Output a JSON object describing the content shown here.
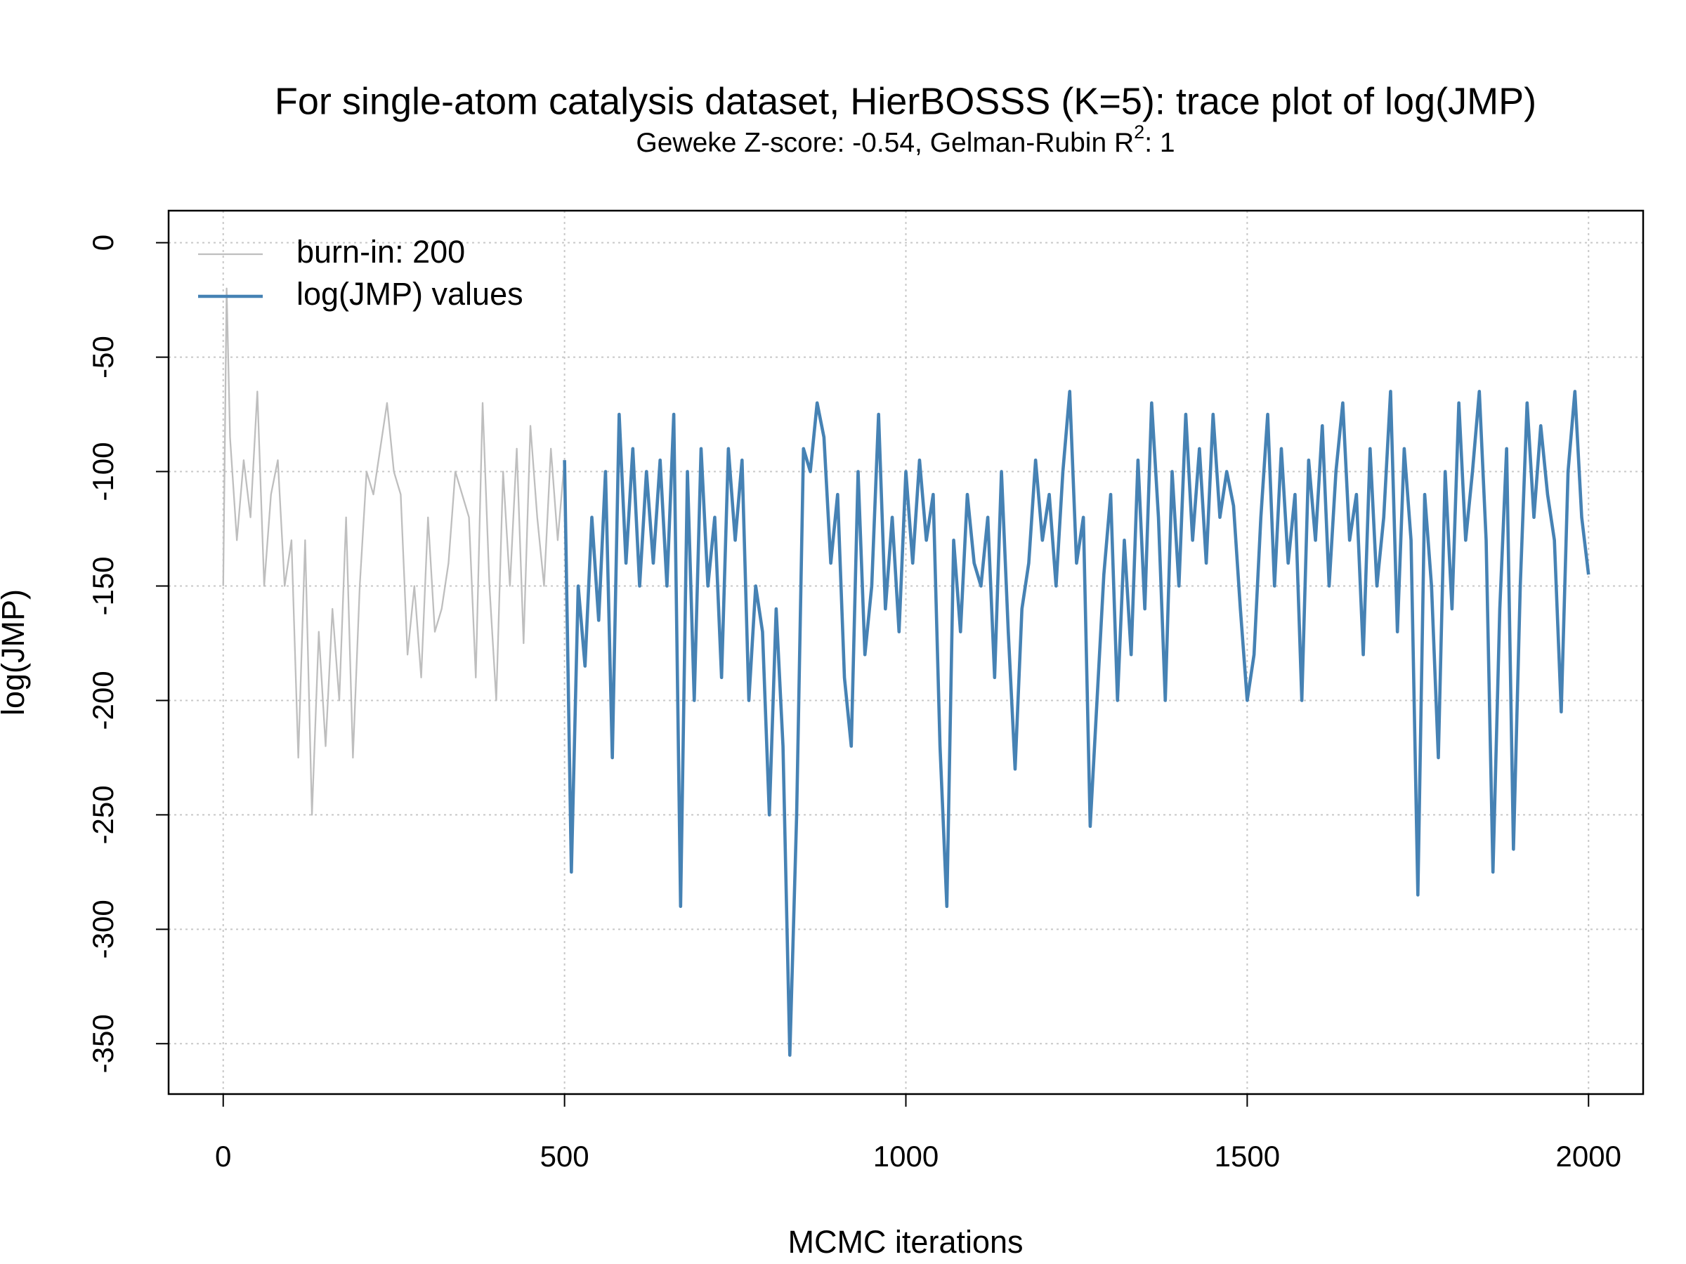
{
  "chart_data": {
    "type": "line",
    "title": "For single-atom catalysis dataset, HierBOSSS (K=5): trace plot of log(JMP)",
    "subtitle": [
      "Geweke Z-score: -0.54,  Gelman-Rubin R",
      "2",
      ": 1"
    ],
    "x_label": "MCMC iterations",
    "y_label": "log(JMP)",
    "xlim": [
      -80,
      2080
    ],
    "ylim": [
      -372,
      14
    ],
    "xticks": [
      0,
      500,
      1000,
      1500,
      2000
    ],
    "yticks": [
      0,
      -50,
      -100,
      -150,
      -200,
      -250,
      -300,
      -350
    ],
    "grid": true,
    "legend": "top-left",
    "series": [
      {
        "name": "burn-in: 200",
        "color": "#bebebe",
        "width": 1,
        "x": [
          0,
          5,
          10,
          20,
          30,
          40,
          50,
          60,
          70,
          80,
          90,
          100,
          110,
          120,
          130,
          140,
          150,
          160,
          170,
          180,
          190,
          200,
          210,
          220,
          230,
          240,
          250,
          260,
          270,
          280,
          290,
          300,
          310,
          320,
          330,
          340,
          350,
          360,
          370,
          380,
          390,
          400,
          410,
          420,
          430,
          440,
          450,
          460,
          470,
          480,
          490,
          500
        ],
        "values": [
          -150,
          -20,
          -85,
          -130,
          -95,
          -120,
          -65,
          -150,
          -110,
          -95,
          -150,
          -130,
          -225,
          -130,
          -250,
          -170,
          -220,
          -160,
          -200,
          -120,
          -225,
          -150,
          -100,
          -110,
          -90,
          -70,
          -100,
          -110,
          -180,
          -150,
          -190,
          -120,
          -170,
          -160,
          -140,
          -100,
          -110,
          -120,
          -190,
          -70,
          -150,
          -200,
          -100,
          -150,
          -90,
          -175,
          -80,
          -120,
          -150,
          -90,
          -130,
          -95
        ]
      },
      {
        "name": "log(JMP) values",
        "color": "#4682b4",
        "width": 2,
        "x": [
          500,
          510,
          520,
          530,
          540,
          550,
          560,
          570,
          580,
          590,
          600,
          610,
          620,
          630,
          640,
          650,
          660,
          670,
          680,
          690,
          700,
          710,
          720,
          730,
          740,
          750,
          760,
          770,
          780,
          790,
          800,
          810,
          820,
          830,
          840,
          850,
          860,
          870,
          880,
          890,
          900,
          910,
          920,
          930,
          940,
          950,
          960,
          970,
          980,
          990,
          1000,
          1010,
          1020,
          1030,
          1040,
          1050,
          1060,
          1070,
          1080,
          1090,
          1100,
          1110,
          1120,
          1130,
          1140,
          1150,
          1160,
          1170,
          1180,
          1190,
          1200,
          1210,
          1220,
          1230,
          1240,
          1250,
          1260,
          1270,
          1280,
          1290,
          1300,
          1310,
          1320,
          1330,
          1340,
          1350,
          1360,
          1370,
          1380,
          1390,
          1400,
          1410,
          1420,
          1430,
          1440,
          1450,
          1460,
          1470,
          1480,
          1490,
          1500,
          1510,
          1520,
          1530,
          1540,
          1550,
          1560,
          1570,
          1580,
          1590,
          1600,
          1610,
          1620,
          1630,
          1640,
          1650,
          1660,
          1670,
          1680,
          1690,
          1700,
          1710,
          1720,
          1730,
          1740,
          1750,
          1760,
          1770,
          1780,
          1790,
          1800,
          1810,
          1820,
          1830,
          1840,
          1850,
          1860,
          1870,
          1880,
          1890,
          1900,
          1910,
          1920,
          1930,
          1940,
          1950,
          1960,
          1970,
          1980,
          1990,
          2000
        ],
        "values": [
          -95,
          -275,
          -150,
          -185,
          -120,
          -165,
          -100,
          -225,
          -75,
          -140,
          -90,
          -150,
          -100,
          -140,
          -95,
          -150,
          -75,
          -290,
          -100,
          -200,
          -90,
          -150,
          -120,
          -190,
          -90,
          -130,
          -95,
          -200,
          -150,
          -170,
          -250,
          -160,
          -220,
          -355,
          -250,
          -90,
          -100,
          -70,
          -85,
          -140,
          -110,
          -190,
          -220,
          -100,
          -180,
          -150,
          -75,
          -160,
          -120,
          -170,
          -100,
          -140,
          -95,
          -130,
          -110,
          -220,
          -290,
          -130,
          -170,
          -110,
          -140,
          -150,
          -120,
          -190,
          -100,
          -170,
          -230,
          -160,
          -140,
          -95,
          -130,
          -110,
          -150,
          -100,
          -65,
          -140,
          -120,
          -255,
          -200,
          -145,
          -110,
          -200,
          -130,
          -180,
          -95,
          -160,
          -70,
          -120,
          -200,
          -100,
          -150,
          -75,
          -130,
          -90,
          -140,
          -75,
          -120,
          -100,
          -115,
          -160,
          -200,
          -180,
          -120,
          -75,
          -150,
          -90,
          -140,
          -110,
          -200,
          -95,
          -130,
          -80,
          -150,
          -100,
          -70,
          -130,
          -110,
          -180,
          -90,
          -150,
          -120,
          -65,
          -170,
          -90,
          -130,
          -285,
          -110,
          -150,
          -225,
          -100,
          -160,
          -70,
          -130,
          -100,
          -65,
          -130,
          -275,
          -160,
          -90,
          -265,
          -150,
          -70,
          -120,
          -80,
          -110,
          -130,
          -205,
          -100,
          -65,
          -120,
          -145
        ]
      }
    ]
  }
}
